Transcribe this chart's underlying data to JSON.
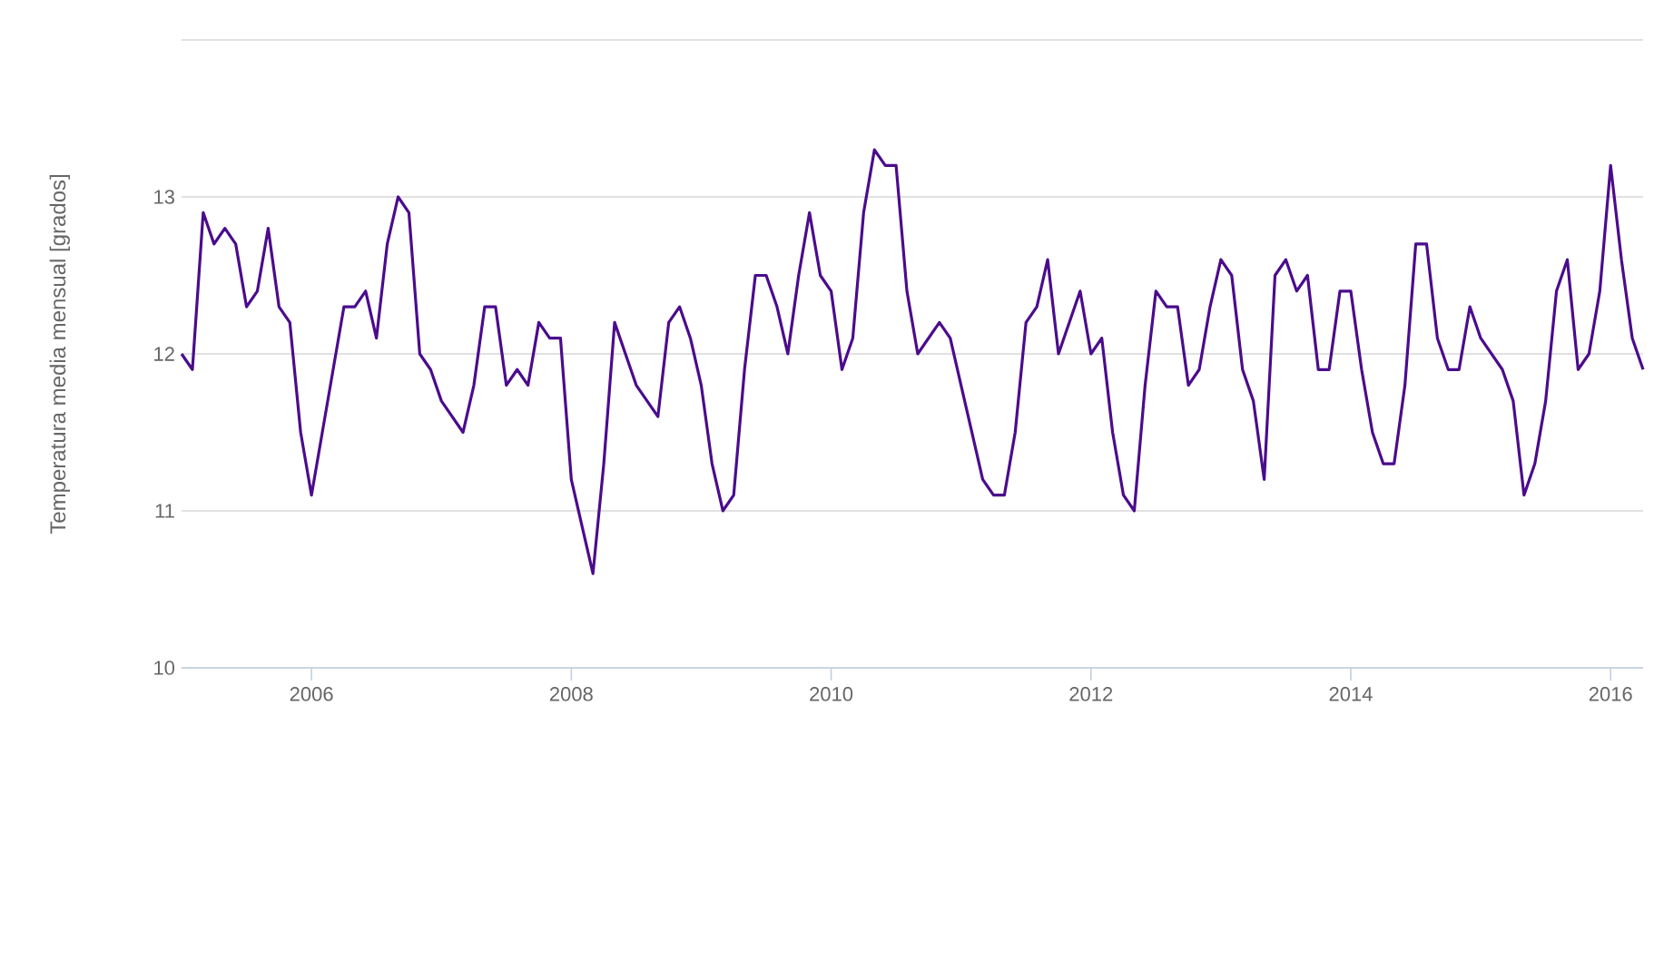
{
  "chart_data": {
    "type": "line",
    "ylabel": "Temperatura media mensual [grados]",
    "x": [
      "2005-01",
      "2005-02",
      "2005-03",
      "2005-04",
      "2005-05",
      "2005-06",
      "2005-07",
      "2005-08",
      "2005-09",
      "2005-10",
      "2005-11",
      "2005-12",
      "2006-01",
      "2006-02",
      "2006-03",
      "2006-04",
      "2006-05",
      "2006-06",
      "2006-07",
      "2006-08",
      "2006-09",
      "2006-10",
      "2006-11",
      "2006-12",
      "2007-01",
      "2007-02",
      "2007-03",
      "2007-04",
      "2007-05",
      "2007-06",
      "2007-07",
      "2007-08",
      "2007-09",
      "2007-10",
      "2007-11",
      "2007-12",
      "2008-01",
      "2008-02",
      "2008-03",
      "2008-04",
      "2008-05",
      "2008-06",
      "2008-07",
      "2008-08",
      "2008-09",
      "2008-10",
      "2008-11",
      "2008-12",
      "2009-01",
      "2009-02",
      "2009-03",
      "2009-04",
      "2009-05",
      "2009-06",
      "2009-07",
      "2009-08",
      "2009-09",
      "2009-10",
      "2009-11",
      "2009-12",
      "2010-01",
      "2010-02",
      "2010-03",
      "2010-04",
      "2010-05",
      "2010-06",
      "2010-07",
      "2010-08",
      "2010-09",
      "2010-10",
      "2010-11",
      "2010-12",
      "2011-01",
      "2011-02",
      "2011-03",
      "2011-04",
      "2011-05",
      "2011-06",
      "2011-07",
      "2011-08",
      "2011-09",
      "2011-10",
      "2011-11",
      "2011-12",
      "2012-01",
      "2012-02",
      "2012-03",
      "2012-04",
      "2012-05",
      "2012-06",
      "2012-07",
      "2012-08",
      "2012-09",
      "2012-10",
      "2012-11",
      "2012-12",
      "2013-01",
      "2013-02",
      "2013-03",
      "2013-04",
      "2013-05",
      "2013-06",
      "2013-07",
      "2013-08",
      "2013-09",
      "2013-10",
      "2013-11",
      "2013-12",
      "2014-01",
      "2014-02",
      "2014-03",
      "2014-04",
      "2014-05",
      "2014-06",
      "2014-07",
      "2014-08",
      "2014-09",
      "2014-10",
      "2014-11",
      "2014-12",
      "2015-01",
      "2015-02",
      "2015-03",
      "2015-04",
      "2015-05",
      "2015-06",
      "2015-07",
      "2015-08",
      "2015-09",
      "2015-10",
      "2015-11",
      "2015-12",
      "2016-01",
      "2016-02",
      "2016-03",
      "2016-04"
    ],
    "series": [
      {
        "color": "#4b0c8c",
        "values": [
          12.0,
          11.9,
          12.9,
          12.7,
          12.8,
          12.7,
          12.3,
          12.4,
          12.8,
          12.3,
          12.2,
          11.5,
          11.1,
          11.5,
          11.9,
          12.3,
          12.3,
          12.4,
          12.1,
          12.7,
          13.0,
          12.9,
          12.0,
          11.9,
          11.7,
          11.6,
          11.5,
          11.8,
          12.3,
          12.3,
          11.8,
          11.9,
          11.8,
          12.2,
          12.1,
          12.1,
          11.2,
          10.9,
          10.6,
          11.3,
          12.2,
          12.0,
          11.8,
          11.7,
          11.6,
          12.2,
          12.3,
          12.1,
          11.8,
          11.3,
          11.0,
          11.1,
          11.9,
          12.5,
          12.5,
          12.3,
          12.0,
          12.5,
          12.9,
          12.5,
          12.4,
          11.9,
          12.1,
          12.9,
          13.3,
          13.2,
          13.2,
          12.4,
          12.0,
          12.1,
          12.2,
          12.1,
          11.8,
          11.5,
          11.2,
          11.1,
          11.1,
          11.5,
          12.2,
          12.3,
          12.6,
          12.0,
          12.2,
          12.4,
          12.0,
          12.1,
          11.5,
          11.1,
          11.0,
          11.8,
          12.4,
          12.3,
          12.3,
          11.8,
          11.9,
          12.3,
          12.6,
          12.5,
          11.9,
          11.7,
          11.2,
          12.5,
          12.6,
          12.4,
          12.5,
          11.9,
          11.9,
          12.4,
          12.4,
          11.9,
          11.5,
          11.3,
          11.3,
          11.8,
          12.7,
          12.7,
          12.1,
          11.9,
          11.9,
          12.3,
          12.1,
          12.0,
          11.9,
          11.7,
          11.1,
          11.3,
          11.7,
          12.4,
          12.6,
          11.9,
          12.0,
          12.4,
          13.2,
          12.6,
          12.1,
          11.9
        ]
      }
    ],
    "xlim": [
      "2005-01",
      "2016-04"
    ],
    "ylim": [
      10,
      14
    ],
    "xticks": [
      "2006",
      "2008",
      "2010",
      "2012",
      "2014",
      "2016"
    ],
    "yticks": [
      10,
      11,
      12,
      13,
      {
        "value": 14,
        "label": null
      }
    ],
    "grid": "y",
    "line_style": "solid"
  }
}
